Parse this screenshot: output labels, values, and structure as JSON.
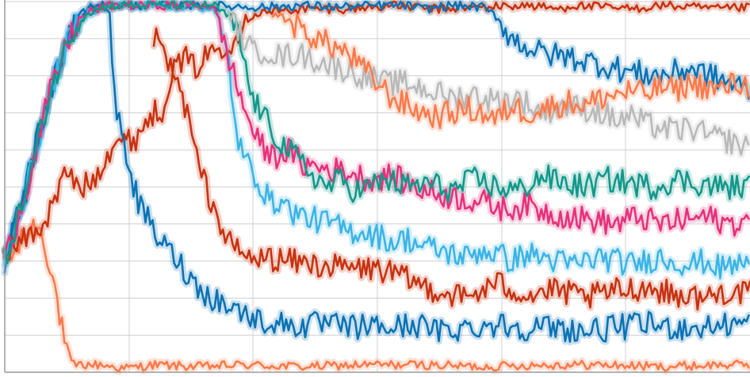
{
  "chart_data": {
    "type": "line",
    "title": "",
    "xlabel": "",
    "ylabel": "",
    "xlim": [
      0,
      1000
    ],
    "ylim": [
      0,
      1
    ],
    "grid": true,
    "legend": "none",
    "series": [
      {
        "color": "#fb7a4a",
        "x": [
          0,
          14,
          30,
          45,
          60,
          66,
          73,
          79,
          84,
          87,
          91,
          100,
          130,
          160,
          200,
          260,
          320,
          400,
          480,
          560,
          640,
          720,
          800,
          880,
          960,
          1000
        ],
        "values": [
          0.3,
          0.32,
          0.38,
          0.4,
          0.3,
          0.24,
          0.16,
          0.09,
          0.04,
          0.03,
          0.02,
          0.02,
          0.02,
          0.01,
          0.02,
          0.015,
          0.02,
          0.015,
          0.02,
          0.02,
          0.015,
          0.02,
          0.02,
          0.015,
          0.02,
          0.02
        ]
      },
      {
        "color": "#c8320f",
        "x": [
          0,
          21,
          53,
          70,
          85,
          95,
          105,
          119,
          135,
          148,
          160,
          175,
          190,
          200,
          210,
          222,
          240,
          255,
          265,
          278,
          290,
          310,
          320,
          340,
          400,
          460,
          520,
          580,
          640,
          700,
          745,
          760,
          800,
          840,
          880,
          920,
          960,
          1000
        ],
        "values": [
          0.33,
          0.35,
          0.4,
          0.48,
          0.55,
          0.5,
          0.5,
          0.52,
          0.58,
          0.63,
          0.62,
          0.63,
          0.68,
          0.7,
          0.7,
          0.8,
          0.85,
          0.82,
          0.84,
          0.87,
          0.88,
          0.9,
          0.95,
          0.97,
          0.98,
          0.98,
          0.99,
          0.98,
          0.985,
          0.99,
          0.98,
          0.99,
          0.985,
          0.98,
          0.99,
          0.985,
          0.98,
          0.985
        ]
      },
      {
        "color": "#c8320f",
        "x": [
          200,
          210,
          222,
          235,
          245,
          252,
          258,
          270,
          285,
          300,
          318,
          335,
          350,
          380,
          420,
          460,
          500,
          540,
          580,
          620,
          660,
          700,
          740,
          780,
          820,
          860,
          900,
          940,
          970,
          1000
        ],
        "values": [
          0.9,
          0.88,
          0.82,
          0.76,
          0.7,
          0.63,
          0.57,
          0.5,
          0.42,
          0.35,
          0.32,
          0.3,
          0.31,
          0.3,
          0.29,
          0.28,
          0.28,
          0.25,
          0.22,
          0.2,
          0.24,
          0.21,
          0.22,
          0.2,
          0.22,
          0.23,
          0.21,
          0.2,
          0.22,
          0.21
        ]
      },
      {
        "color": "#0a72b4",
        "x": [
          0,
          20,
          40,
          60,
          80,
          100,
          120,
          140,
          143,
          145,
          148,
          152,
          160,
          170,
          180,
          190,
          200,
          210,
          225,
          240,
          255,
          270,
          290,
          310,
          340,
          370,
          400,
          430,
          460,
          490,
          520,
          550,
          580,
          620,
          660,
          700,
          740,
          780,
          820,
          860,
          900,
          940,
          970,
          1000
        ],
        "values": [
          0.3,
          0.45,
          0.6,
          0.75,
          0.88,
          0.96,
          0.99,
          0.98,
          0.9,
          0.82,
          0.75,
          0.68,
          0.62,
          0.53,
          0.45,
          0.42,
          0.38,
          0.35,
          0.32,
          0.28,
          0.24,
          0.21,
          0.19,
          0.17,
          0.14,
          0.13,
          0.125,
          0.13,
          0.12,
          0.125,
          0.12,
          0.13,
          0.11,
          0.12,
          0.13,
          0.12,
          0.12,
          0.11,
          0.12,
          0.13,
          0.12,
          0.12,
          0.13,
          0.13
        ]
      },
      {
        "color": "#0a72b4",
        "x": [
          0,
          30,
          60,
          90,
          110,
          130,
          170,
          250,
          350,
          400,
          450,
          500,
          540,
          560,
          600,
          640,
          660,
          680,
          700,
          720,
          760,
          800,
          840,
          880,
          920,
          960,
          1000
        ],
        "values": [
          0.3,
          0.5,
          0.75,
          0.92,
          0.98,
          0.99,
          0.99,
          0.99,
          0.985,
          0.99,
          0.985,
          0.99,
          0.99,
          0.98,
          0.99,
          0.985,
          0.96,
          0.9,
          0.88,
          0.86,
          0.85,
          0.83,
          0.81,
          0.8,
          0.82,
          0.79,
          0.76
        ]
      },
      {
        "color": "#3bb4e6",
        "x": [
          0,
          30,
          60,
          90,
          110,
          140,
          200,
          250,
          280,
          300,
          310,
          320,
          330,
          340,
          350,
          360,
          370,
          380,
          400,
          420,
          440,
          460,
          480,
          500,
          520,
          540,
          560,
          580,
          600,
          620,
          640,
          660,
          680,
          700,
          720,
          740,
          760,
          780,
          800,
          820,
          840,
          860,
          880,
          900,
          920,
          940,
          960,
          980,
          1000
        ],
        "values": [
          0.3,
          0.5,
          0.75,
          0.92,
          0.97,
          0.99,
          0.99,
          0.99,
          0.98,
          0.85,
          0.65,
          0.58,
          0.55,
          0.52,
          0.48,
          0.45,
          0.47,
          0.44,
          0.42,
          0.41,
          0.4,
          0.38,
          0.38,
          0.37,
          0.35,
          0.36,
          0.34,
          0.33,
          0.32,
          0.31,
          0.33,
          0.32,
          0.3,
          0.32,
          0.31,
          0.3,
          0.29,
          0.3,
          0.31,
          0.3,
          0.29,
          0.3,
          0.31,
          0.3,
          0.29,
          0.3,
          0.28,
          0.29,
          0.3
        ]
      },
      {
        "color": "#e8307a",
        "x": [
          0,
          30,
          60,
          90,
          110,
          140,
          200,
          250,
          280,
          300,
          320,
          340,
          360,
          380,
          400,
          430,
          460,
          490,
          520,
          550,
          580,
          610,
          640,
          670,
          700,
          730,
          760,
          790,
          820,
          850,
          880,
          910,
          940,
          970,
          1000
        ],
        "values": [
          0.3,
          0.5,
          0.75,
          0.92,
          0.97,
          0.99,
          0.99,
          0.99,
          0.99,
          0.85,
          0.72,
          0.62,
          0.58,
          0.6,
          0.56,
          0.55,
          0.54,
          0.52,
          0.53,
          0.5,
          0.48,
          0.47,
          0.46,
          0.44,
          0.45,
          0.43,
          0.42,
          0.41,
          0.4,
          0.42,
          0.4,
          0.41,
          0.42,
          0.4,
          0.41
        ]
      },
      {
        "color": "#12988a",
        "x": [
          0,
          30,
          60,
          90,
          110,
          140,
          200,
          250,
          280,
          300,
          315,
          330,
          350,
          370,
          390,
          410,
          430,
          450,
          470,
          490,
          510,
          540,
          570,
          600,
          630,
          660,
          690,
          720,
          750,
          780,
          810,
          840,
          870,
          900,
          930,
          960,
          1000
        ],
        "values": [
          0.3,
          0.5,
          0.75,
          0.92,
          0.97,
          0.99,
          0.99,
          0.99,
          0.99,
          0.96,
          0.9,
          0.75,
          0.68,
          0.62,
          0.58,
          0.54,
          0.5,
          0.52,
          0.49,
          0.5,
          0.52,
          0.5,
          0.51,
          0.49,
          0.52,
          0.5,
          0.49,
          0.53,
          0.51,
          0.5,
          0.52,
          0.51,
          0.5,
          0.52,
          0.51,
          0.5,
          0.5
        ]
      },
      {
        "color": "#b9b9b9",
        "x": [
          300,
          320,
          335,
          350,
          370,
          390,
          420,
          450,
          480,
          510,
          540,
          570,
          600,
          630,
          660,
          690,
          720,
          750,
          780,
          800,
          820,
          840,
          860,
          880,
          900,
          920,
          940,
          960,
          980,
          1000
        ],
        "values": [
          0.97,
          0.9,
          0.86,
          0.87,
          0.85,
          0.86,
          0.84,
          0.82,
          0.8,
          0.78,
          0.78,
          0.76,
          0.74,
          0.75,
          0.73,
          0.74,
          0.7,
          0.72,
          0.71,
          0.7,
          0.68,
          0.69,
          0.67,
          0.66,
          0.65,
          0.66,
          0.64,
          0.63,
          0.62,
          0.6
        ]
      },
      {
        "color": "#fb7a4a",
        "x": [
          360,
          380,
          400,
          420,
          440,
          460,
          480,
          500,
          520,
          540,
          560,
          580,
          600,
          620,
          640,
          660,
          680,
          700,
          720,
          740,
          760,
          780,
          800,
          820,
          840,
          860,
          880,
          900,
          920,
          940,
          960,
          980,
          1000
        ],
        "values": [
          0.97,
          0.95,
          0.92,
          0.9,
          0.88,
          0.86,
          0.82,
          0.78,
          0.74,
          0.72,
          0.7,
          0.69,
          0.7,
          0.71,
          0.7,
          0.68,
          0.72,
          0.7,
          0.71,
          0.72,
          0.73,
          0.72,
          0.74,
          0.75,
          0.76,
          0.75,
          0.77,
          0.76,
          0.78,
          0.77,
          0.76,
          0.78,
          0.77
        ]
      }
    ]
  }
}
